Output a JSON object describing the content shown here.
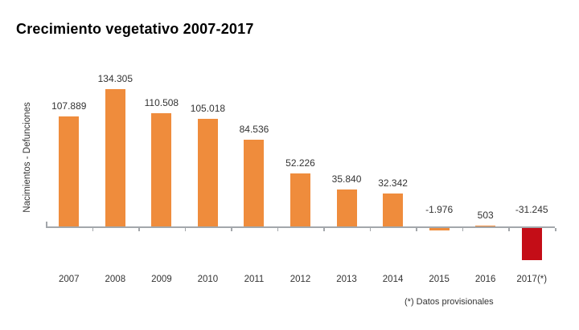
{
  "chart_data": {
    "type": "bar",
    "title": "Crecimiento vegetativo 2007-2017",
    "ylabel": "Nacimientos - Defunciones",
    "xlabel": "",
    "footnote": "(*) Datos provisionales",
    "categories": [
      "2007",
      "2008",
      "2009",
      "2010",
      "2011",
      "2012",
      "2013",
      "2014",
      "2015",
      "2016",
      "2017(*)"
    ],
    "values": [
      107889,
      134305,
      110508,
      105018,
      84536,
      52226,
      35840,
      32342,
      -1976,
      503,
      -31245
    ],
    "value_labels": [
      "107.889",
      "134.305",
      "110.508",
      "105.018",
      "84.536",
      "52.226",
      "35.840",
      "32.342",
      "-1.976",
      "503",
      "-31.245"
    ],
    "bar_colors": [
      "#EF8C3C",
      "#EF8C3C",
      "#EF8C3C",
      "#EF8C3C",
      "#EF8C3C",
      "#EF8C3C",
      "#EF8C3C",
      "#EF8C3C",
      "#EF8C3C",
      "#EF8C3C",
      "#C40D17"
    ],
    "colors": {
      "bar": "#EF8C3C",
      "provisional_bar": "#C40D17",
      "axis": "#A3A7AB",
      "text": "#333333",
      "title": "#000000"
    },
    "ylim": [
      -35000,
      140000
    ],
    "grid": false,
    "legend": null
  }
}
